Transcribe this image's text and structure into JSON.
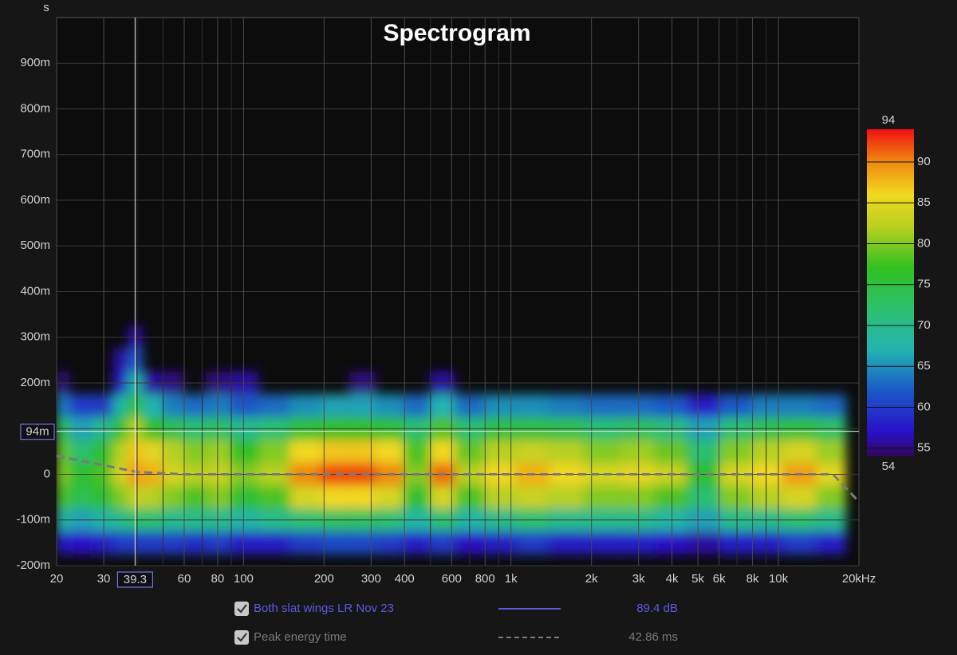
{
  "chart_data": {
    "type": "spectrogram",
    "title": "Spectrogram",
    "y_unit": "s",
    "xscale": "log",
    "xlim": [
      20,
      20000
    ],
    "xticks": [
      20,
      30,
      60,
      80,
      100,
      200,
      300,
      400,
      600,
      800,
      {
        "value": 1000,
        "label": "1k"
      },
      {
        "value": 2000,
        "label": "2k"
      },
      {
        "value": 3000,
        "label": "3k"
      },
      {
        "value": 4000,
        "label": "4k"
      },
      {
        "value": 5000,
        "label": "5k"
      },
      {
        "value": 6000,
        "label": "6k"
      },
      {
        "value": 8000,
        "label": "8k"
      },
      {
        "value": 10000,
        "label": "10k"
      },
      {
        "value": 20000,
        "label": "20kHz"
      }
    ],
    "xminor": [
      40,
      50,
      70,
      90,
      500,
      700,
      900,
      7000,
      9000
    ],
    "ylim": [
      -0.2,
      1.0
    ],
    "yticks": [
      {
        "value": -0.2,
        "label": "-200m"
      },
      {
        "value": -0.1,
        "label": "-100m"
      },
      0,
      {
        "value": 0.1,
        "label": "100m"
      },
      {
        "value": 0.2,
        "label": "200m"
      },
      {
        "value": 0.3,
        "label": "300m"
      },
      {
        "value": 0.4,
        "label": "400m"
      },
      {
        "value": 0.5,
        "label": "500m"
      },
      {
        "value": 0.6,
        "label": "600m"
      },
      {
        "value": 0.7,
        "label": "700m"
      },
      {
        "value": 0.8,
        "label": "800m"
      },
      {
        "value": 0.9,
        "label": "900m"
      }
    ],
    "grid": true,
    "freqs": [
      20,
      25,
      30,
      35,
      39,
      45,
      55,
      65,
      80,
      100,
      130,
      170,
      220,
      280,
      350,
      450,
      550,
      700,
      900,
      1200,
      1600,
      2200,
      3000,
      4000,
      5200,
      7000,
      9000,
      12000,
      16000
    ],
    "times": [
      -0.15,
      -0.1,
      -0.05,
      0,
      0.05,
      0.1,
      0.15,
      0.2,
      0.25,
      0.3
    ],
    "time_step": 0.05,
    "z": [
      [
        58,
        57,
        58,
        60,
        60,
        60,
        60,
        59,
        60,
        58,
        58,
        60,
        61,
        61,
        60,
        58,
        60,
        57,
        58,
        60,
        58,
        58,
        58,
        57,
        56,
        58,
        58,
        60,
        58
      ],
      [
        68,
        66,
        68,
        70,
        72,
        72,
        70,
        70,
        70,
        68,
        70,
        72,
        73,
        73,
        72,
        68,
        72,
        68,
        70,
        72,
        70,
        70,
        70,
        68,
        66,
        70,
        70,
        72,
        70
      ],
      [
        78,
        74,
        76,
        80,
        83,
        82,
        80,
        78,
        80,
        76,
        78,
        84,
        86,
        86,
        84,
        76,
        84,
        78,
        82,
        83,
        82,
        80,
        80,
        78,
        72,
        80,
        82,
        84,
        80
      ],
      [
        80,
        76,
        78,
        84,
        89,
        88,
        84,
        82,
        83,
        80,
        82,
        90,
        92,
        92,
        90,
        80,
        91,
        82,
        86,
        88,
        86,
        84,
        85,
        83,
        76,
        84,
        86,
        89,
        85
      ],
      [
        79,
        72,
        76,
        82,
        87,
        85,
        82,
        80,
        81,
        77,
        80,
        86,
        87,
        87,
        86,
        78,
        86,
        79,
        82,
        83,
        82,
        80,
        81,
        79,
        72,
        80,
        82,
        84,
        81
      ],
      [
        74,
        66,
        70,
        76,
        82,
        77,
        74,
        72,
        73,
        70,
        72,
        76,
        77,
        77,
        76,
        72,
        78,
        72,
        75,
        75,
        74,
        72,
        73,
        71,
        66,
        72,
        74,
        75,
        73
      ],
      [
        64,
        60,
        60,
        68,
        76,
        67,
        64,
        63,
        64,
        62,
        63,
        65,
        66,
        66,
        65,
        63,
        67,
        63,
        65,
        65,
        64,
        63,
        63,
        62,
        58,
        62,
        64,
        64,
        63
      ],
      [
        55,
        null,
        null,
        58,
        68,
        56,
        55,
        null,
        55,
        56,
        null,
        null,
        null,
        55,
        null,
        null,
        56,
        null,
        null,
        null,
        null,
        null,
        null,
        null,
        null,
        null,
        null,
        null,
        null
      ],
      [
        null,
        null,
        null,
        56,
        62,
        null,
        null,
        null,
        null,
        null,
        null,
        null,
        null,
        null,
        null,
        null,
        null,
        null,
        null,
        null,
        null,
        null,
        null,
        null,
        null,
        null,
        null,
        null,
        null
      ],
      [
        null,
        null,
        null,
        null,
        56,
        null,
        null,
        null,
        null,
        null,
        null,
        null,
        null,
        null,
        null,
        null,
        null,
        null,
        null,
        null,
        null,
        null,
        null,
        null,
        null,
        null,
        null,
        null,
        null
      ]
    ],
    "colorbar": {
      "lim": [
        54,
        94
      ],
      "top_label": "94",
      "bottom_label": "54",
      "ticks": [
        55,
        60,
        65,
        70,
        75,
        80,
        85,
        90
      ]
    },
    "colorscale": [
      [
        54,
        "#30085a"
      ],
      [
        57,
        "#2a10c8"
      ],
      [
        62,
        "#1a58c8"
      ],
      [
        67,
        "#22b4b0"
      ],
      [
        72,
        "#2cc070"
      ],
      [
        77,
        "#30c020"
      ],
      [
        82,
        "#b8d020"
      ],
      [
        86,
        "#f2d820"
      ],
      [
        90,
        "#f08a10"
      ],
      [
        94,
        "#f01010"
      ]
    ],
    "cursor": {
      "x": {
        "value": 39.3,
        "label": "39.3"
      },
      "y": {
        "value": 0.094,
        "label": "94m"
      }
    },
    "series": [
      {
        "name": "Both slat wings LR Nov 23",
        "color": "#5a5ae0",
        "readout": "89.4 dB"
      },
      {
        "name": "Peak energy time",
        "color": "#7a7a7a",
        "readout": "42.86 ms",
        "x": [
          20,
          30,
          40,
          60,
          100,
          200,
          500,
          1000,
          5000,
          16000,
          20000
        ],
        "values": [
          0.04,
          0.02,
          0.005,
          0,
          0,
          0,
          0,
          0,
          0,
          0,
          -0.06
        ]
      }
    ]
  }
}
